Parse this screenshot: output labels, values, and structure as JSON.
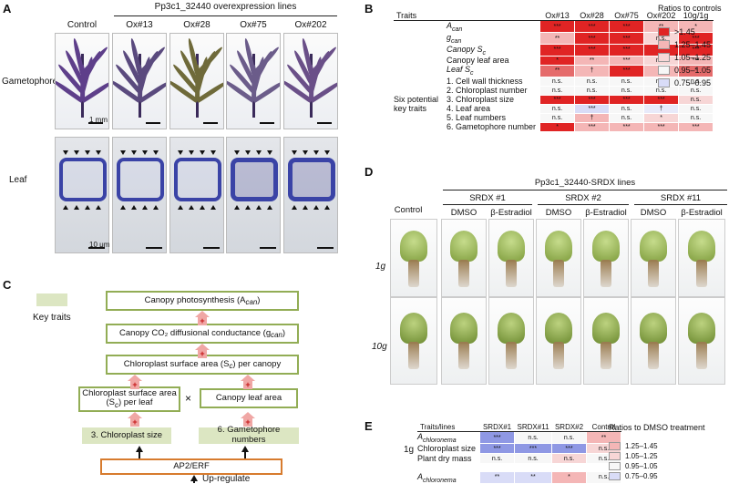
{
  "panel_a": {
    "letter": "A",
    "header": "Pp3c1_32440 overexpression lines",
    "columns": [
      "Control",
      "Ox#13",
      "Ox#28",
      "Ox#75",
      "Ox#202"
    ],
    "row_labels": [
      "Gametophore",
      "Leaf"
    ],
    "scale_gameto": "1 mm",
    "scale_leaf": "10 μm"
  },
  "panel_b": {
    "letter": "B",
    "headers": [
      "Traits",
      "Ox#13",
      "Ox#28",
      "Ox#75",
      "Ox#202",
      "10g/1g"
    ],
    "group_label": "Six potential key traits",
    "rows": [
      {
        "trait": "A",
        "sub": "can",
        "vals": [
          "***",
          "***",
          "***",
          "**",
          "*"
        ],
        "colors": [
          "#e02424",
          "#e02424",
          "#e02424",
          "#f4b6b6",
          "#f4b6b6"
        ]
      },
      {
        "trait": "g",
        "sub": "can",
        "vals": [
          "**",
          "***",
          "***",
          "n.s.",
          "***"
        ],
        "colors": [
          "#f4b6b6",
          "#e02424",
          "#e02424",
          "#f7d6d6",
          "#e02424"
        ]
      },
      {
        "trait": "Canopy S",
        "sub": "c",
        "vals": [
          "***",
          "***",
          "***",
          "***",
          "***"
        ],
        "colors": [
          "#e02424",
          "#e02424",
          "#e02424",
          "#e02424",
          "#e02424"
        ]
      },
      {
        "trait": "Canopy leaf area",
        "sub": "",
        "vals": [
          "*",
          "**",
          "***",
          "n.s.",
          "***"
        ],
        "colors": [
          "#e02424",
          "#f4b6b6",
          "#f4b6b6",
          "#f7d6d6",
          "#f4b6b6"
        ]
      },
      {
        "trait": "Leaf S",
        "sub": "c",
        "vals": [
          "**",
          "†",
          "***",
          "†",
          "*"
        ],
        "colors": [
          "#e56b6b",
          "#f4b6b6",
          "#e02424",
          "#f4b6b6",
          "#e56b6b"
        ]
      },
      {
        "trait": "1. Cell wall thickness",
        "sub": "",
        "vals": [
          "n.s.",
          "n.s.",
          "n.s.",
          "n.s.",
          "n.s."
        ],
        "colors": [
          "#f7f7f7",
          "#f7f7f7",
          "#f7f7f7",
          "#f7f7f7",
          "#f7f7f7"
        ]
      },
      {
        "trait": "2. Chloroplast number",
        "sub": "",
        "vals": [
          "n.s.",
          "n.s.",
          "n.s.",
          "n.s.",
          "n.s."
        ],
        "colors": [
          "#f7f7f7",
          "#f7f7f7",
          "#f7f7f7",
          "#f7f7f7",
          "#f7f7f7"
        ]
      },
      {
        "trait": "3. Chloroplast size",
        "sub": "",
        "vals": [
          "***",
          "***",
          "***",
          "***",
          "n.s."
        ],
        "colors": [
          "#e02424",
          "#e02424",
          "#e02424",
          "#e02424",
          "#f7d6d6"
        ]
      },
      {
        "trait": "4. Leaf area",
        "sub": "",
        "vals": [
          "n.s.",
          "***",
          "n.s.",
          "†",
          "n.s."
        ],
        "colors": [
          "#f7f7f7",
          "#d9dcf7",
          "#f7f7f7",
          "#e8eafa",
          "#f7f7f7"
        ]
      },
      {
        "trait": "5. Leaf numbers",
        "sub": "",
        "vals": [
          "n.s.",
          "†",
          "n.s.",
          "*",
          "n.s."
        ],
        "colors": [
          "#f7f7f7",
          "#f4b6b6",
          "#f7f7f7",
          "#f7d6d6",
          "#f7f7f7"
        ]
      },
      {
        "trait": "6. Gametophore number",
        "sub": "",
        "vals": [
          "*",
          "***",
          "***",
          "***",
          "***"
        ],
        "colors": [
          "#e02424",
          "#f4b6b6",
          "#f4b6b6",
          "#f4b6b6",
          "#f4b6b6"
        ]
      }
    ],
    "legend": {
      "title": "Ratios to controls",
      "items": [
        {
          "label": ">1.45",
          "color": "#e02424"
        },
        {
          "label": "1.25–1.45",
          "color": "#f4b6b6"
        },
        {
          "label": "1.05–1.25",
          "color": "#f7d6d6"
        },
        {
          "label": "0.95–1.05",
          "color": "#f7f7f7"
        },
        {
          "label": "0.75–0.95",
          "color": "#d9dcf7"
        }
      ]
    }
  },
  "panel_c": {
    "letter": "C",
    "key_traits_label": "Key traits",
    "canopy_photosynthesis": "Canopy photosynthesis (A",
    "canopy_photosynthesis_sub": "can",
    "canopy_conductance": "Canopy CO₂ diffusional conductance (g",
    "canopy_conductance_sub": "can",
    "chloroplast_surface_canopy": "Chloroplast surface area (S",
    "chloroplast_surface_canopy_mid": "c",
    "chloroplast_surface_canopy_end": ") per canopy",
    "chloroplast_surface_leaf_1": "Chloroplast surface area",
    "chloroplast_surface_leaf_2": "(S",
    "chloroplast_surface_leaf_sub": "c",
    "chloroplast_surface_leaf_3": ") per leaf",
    "times": "×",
    "canopy_leaf_area": "Canopy leaf area",
    "chloroplast_size": "3. Chloroplast size",
    "gametophore_numbers": "6. Gametophore numbers",
    "ap2": "AP2/ERF",
    "upregulate": "Up-regulate",
    "plus": "+"
  },
  "panel_d": {
    "letter": "D",
    "header": "Pp3c1_32440-SRDX lines",
    "control": "Control",
    "groups": [
      "SRDX #1",
      "SRDX #2",
      "SRDX #11"
    ],
    "treatments": [
      "DMSO",
      "β-Estradiol"
    ],
    "rows": [
      "1g",
      "10g"
    ]
  },
  "panel_e": {
    "letter": "E",
    "headers": [
      "Traits/lines",
      "SRDX#1",
      "SRDX#11",
      "SRDX#2",
      "Control"
    ],
    "group_1g": "1g",
    "rows": [
      {
        "trait": "A",
        "sub": "chloronema",
        "vals": [
          "***",
          "n.s.",
          "n.s.",
          "**"
        ],
        "colors": [
          "#8f98e4",
          "#f7f7f7",
          "#f7f7f7",
          "#f4b6b6"
        ]
      },
      {
        "trait": "Chloroplast size",
        "sub": "",
        "vals": [
          "***",
          "***",
          "***",
          "n.s."
        ],
        "colors": [
          "#8f98e4",
          "#8f98e4",
          "#8f98e4",
          "#f7d6d6"
        ]
      },
      {
        "trait": "Plant dry mass",
        "sub": "",
        "vals": [
          "n.s.",
          "n.s.",
          "n.s.",
          "n.s."
        ],
        "colors": [
          "#f7f7f7",
          "#f7f7f7",
          "#f7d6d6",
          "#f7f7f7"
        ]
      },
      {
        "trait": "A",
        "sub": "chloronema",
        "vals": [
          "**",
          "**",
          "*",
          "n.s."
        ],
        "colors": [
          "#d9dcf7",
          "#d9dcf7",
          "#f4b6b6",
          "#f7f7f7"
        ]
      }
    ],
    "legend": {
      "title": "Ratios to DMSO treatment",
      "items": [
        {
          "label": "1.25–1.45",
          "color": "#f4b6b6"
        },
        {
          "label": "1.05–1.25",
          "color": "#f7d6d6"
        },
        {
          "label": "0.95–1.05",
          "color": "#f7f7f7"
        },
        {
          "label": "0.75–0.95",
          "color": "#d9dcf7"
        }
      ]
    }
  }
}
